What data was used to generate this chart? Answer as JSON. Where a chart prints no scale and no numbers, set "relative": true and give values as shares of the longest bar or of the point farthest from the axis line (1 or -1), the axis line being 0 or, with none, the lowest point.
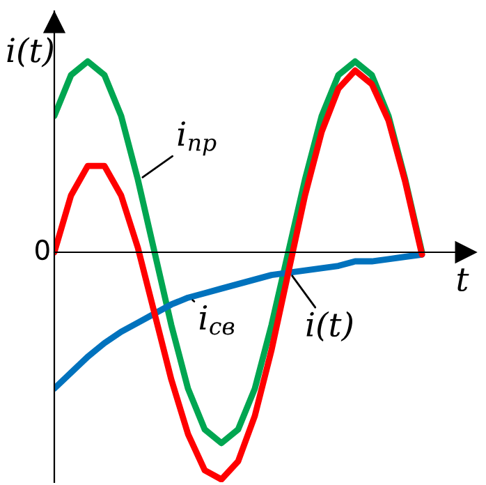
{
  "chart_data": {
    "type": "line",
    "relative": true,
    "xlabel": "t",
    "ylabel": "i(t)",
    "annotations": [
      "0"
    ],
    "categories": [
      null,
      null,
      null,
      null,
      null,
      null,
      null,
      null,
      null,
      null,
      null,
      null,
      null,
      null,
      null,
      null,
      null,
      null,
      null,
      null,
      null,
      null,
      null
    ],
    "series": [
      {
        "name": "i$_{пр}$",
        "color": "#00a651",
        "values": [
          0.6,
          0.78,
          0.84,
          0.78,
          0.6,
          0.32,
          0,
          -0.32,
          -0.6,
          -0.78,
          -0.84,
          -0.78,
          -0.6,
          -0.32,
          0,
          0.32,
          0.6,
          0.78,
          0.84,
          0.78,
          0.6,
          0.32,
          0
        ]
      },
      {
        "name": "i$_{св}$",
        "color": "#0072bd",
        "values": [
          -0.6,
          -0.53,
          -0.46,
          -0.4,
          -0.35,
          -0.31,
          -0.27,
          -0.23,
          -0.2,
          -0.18,
          -0.16,
          -0.14,
          -0.12,
          -0.1,
          -0.09,
          -0.08,
          -0.07,
          -0.06,
          -0.04,
          -0.04,
          -0.03,
          -0.02,
          -0.01
        ]
      },
      {
        "name": "i(t)",
        "color": "#ff0000",
        "values": [
          0,
          0.25,
          0.38,
          0.38,
          0.25,
          0.02,
          -0.27,
          -0.56,
          -0.8,
          -0.96,
          -1,
          -0.92,
          -0.72,
          -0.43,
          -0.09,
          0.25,
          0.53,
          0.72,
          0.8,
          0.74,
          0.58,
          0.31,
          -0.01
        ]
      }
    ],
    "legend": false,
    "marker": "none",
    "line_style": "solid"
  }
}
